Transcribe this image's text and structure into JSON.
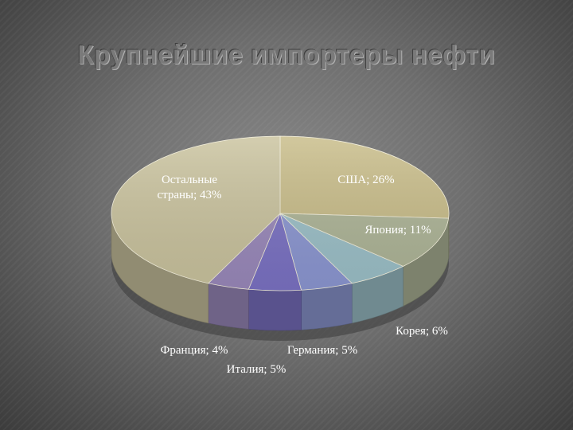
{
  "chart_data": {
    "type": "pie",
    "title": "Крупнейшие импортеры нефти",
    "slices": [
      {
        "label": "США; 26%",
        "value": 26,
        "color": "#c8bc88"
      },
      {
        "label": "Япония; 11%",
        "value": 11,
        "color": "#aeb597"
      },
      {
        "label": "Корея; 6%",
        "value": 6,
        "color": "#9cc0c8"
      },
      {
        "label": "Германия; 5%",
        "value": 5,
        "color": "#8c97d2"
      },
      {
        "label": "Италия; 5%",
        "value": 5,
        "color": "#7b72c4"
      },
      {
        "label": "Франция; 4%",
        "value": 4,
        "color": "#9a89bb"
      },
      {
        "label": "Остальные страны; 43%",
        "value": 43,
        "color": "#cac39e",
        "label_lines": [
          "Остальные",
          "страны; 43%"
        ]
      }
    ]
  }
}
